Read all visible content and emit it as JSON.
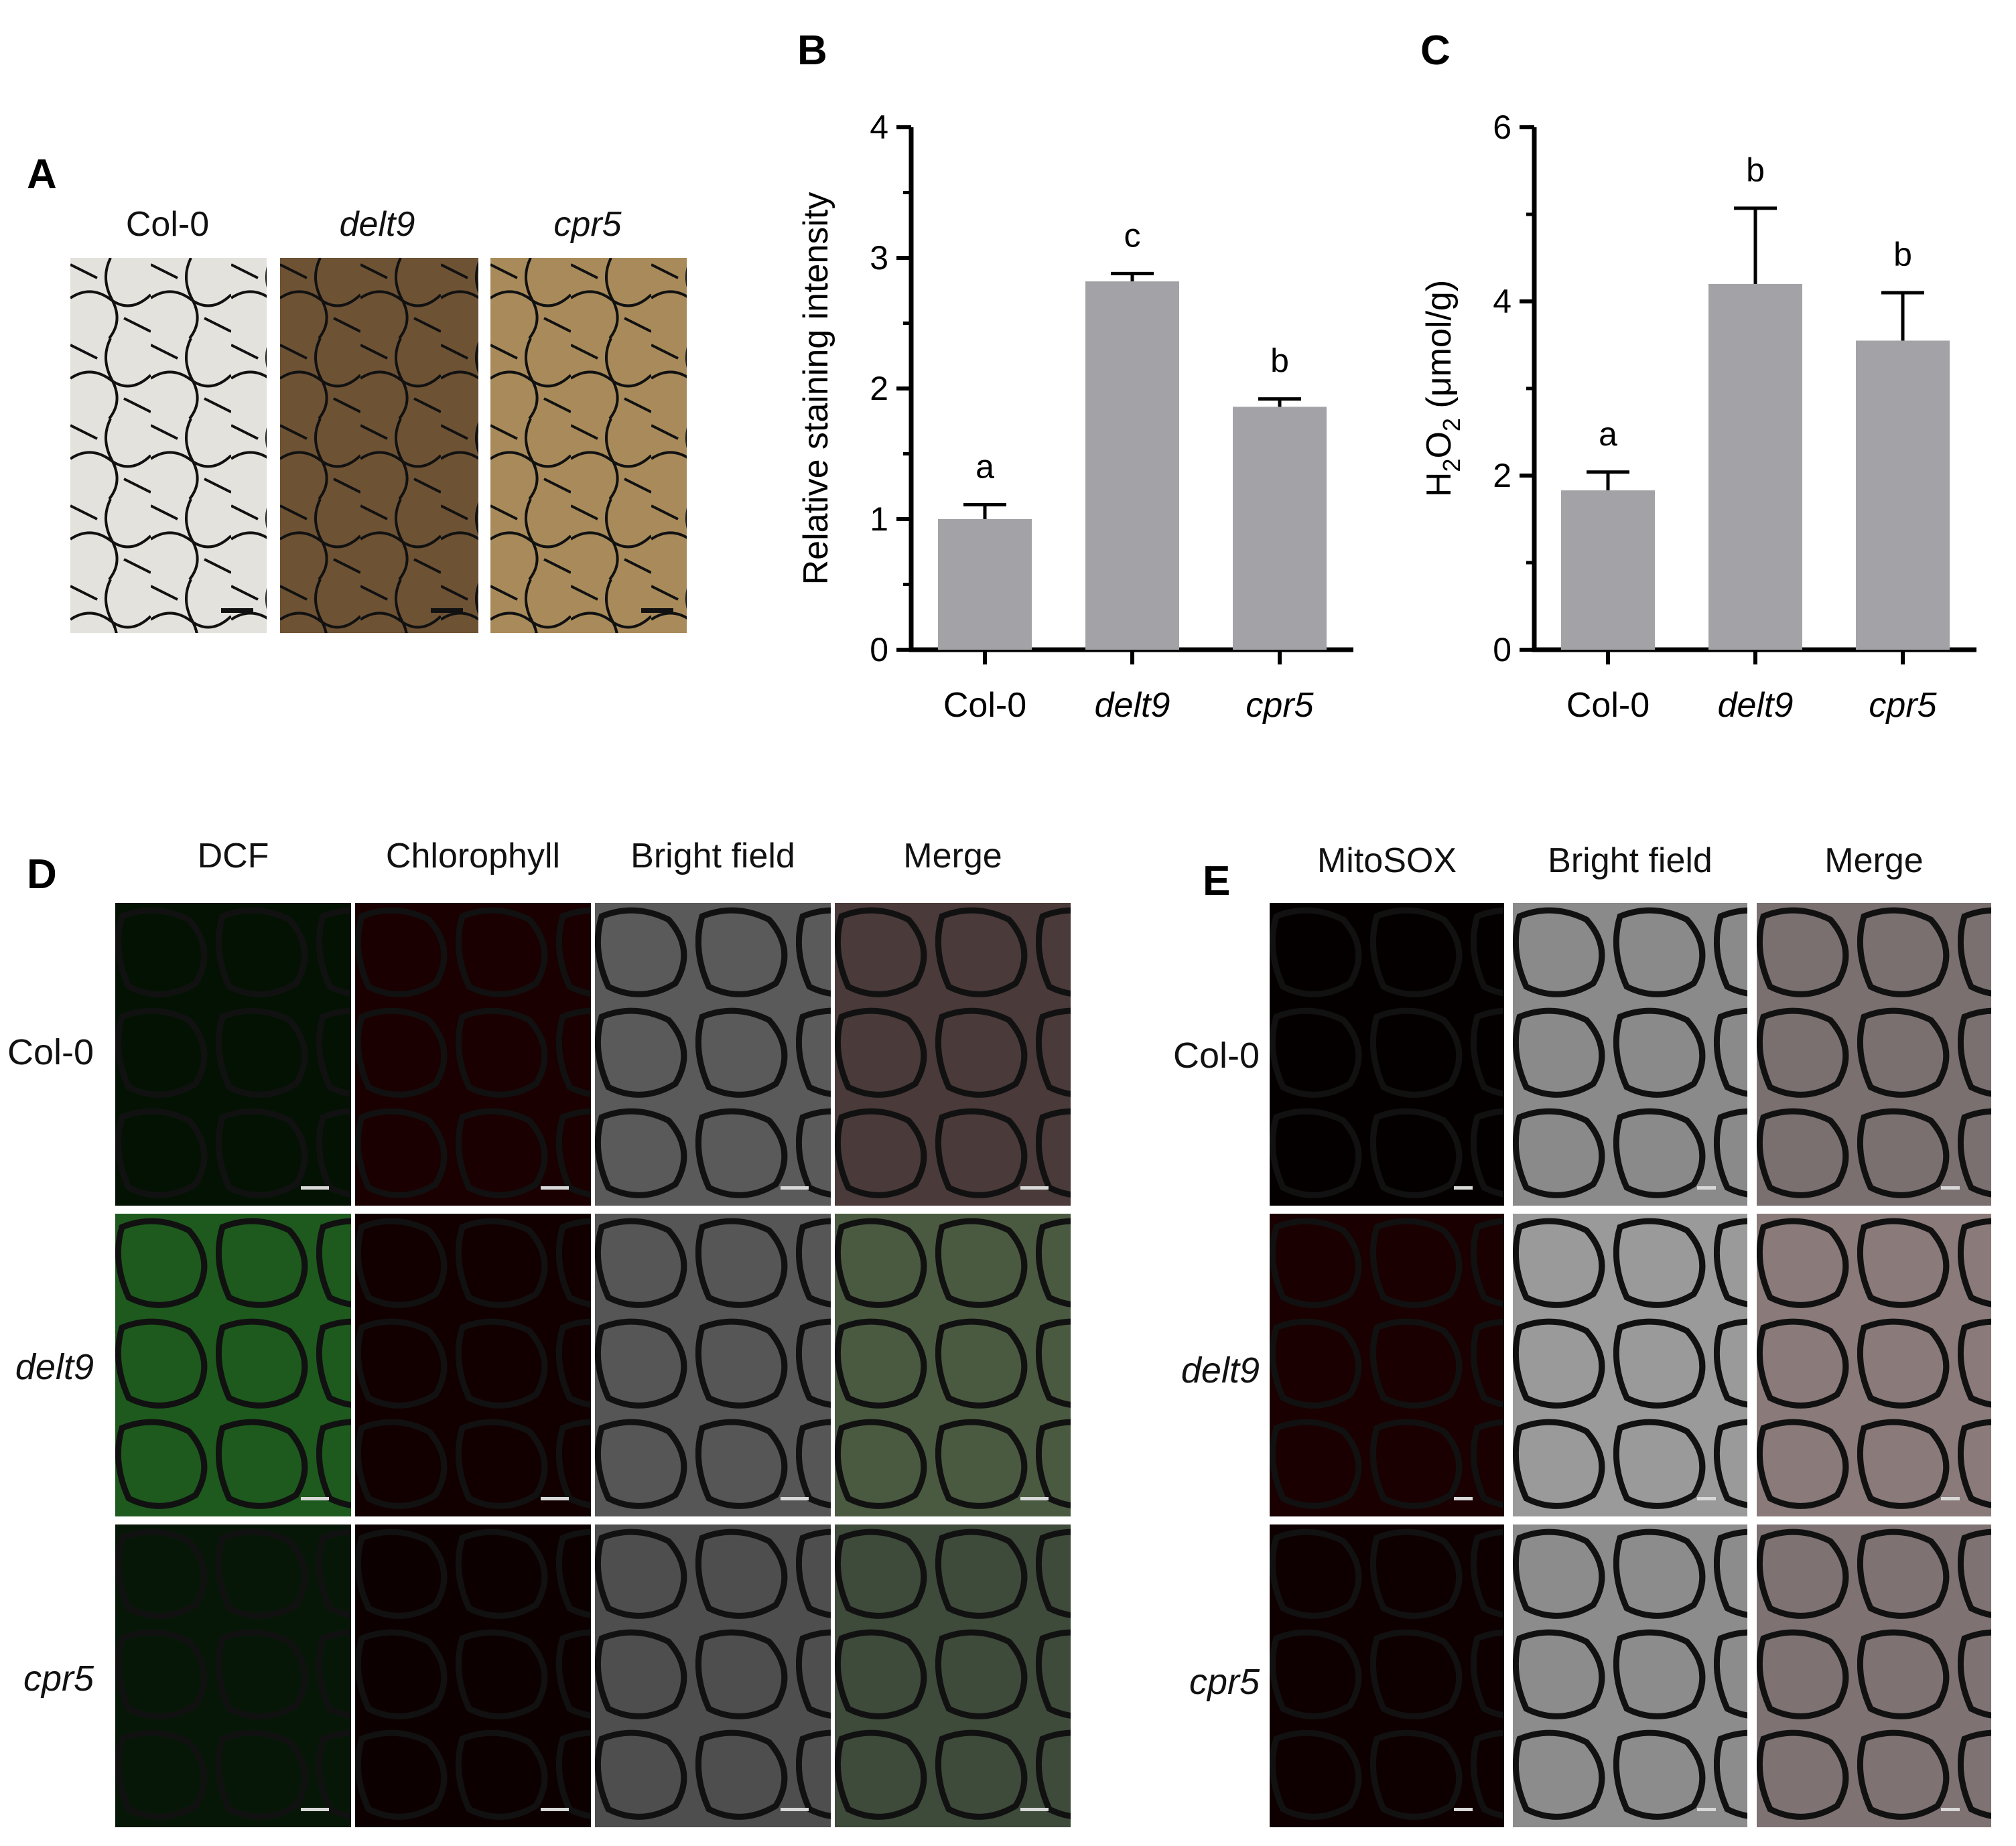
{
  "panels": {
    "A": {
      "letter": "A",
      "columns": [
        "Col-0",
        "delt9",
        "cpr5"
      ]
    },
    "D": {
      "letter": "D",
      "columns": [
        "DCF",
        "Chlorophyll",
        "Bright field",
        "Merge"
      ],
      "rows": [
        "Col-0",
        "delt9",
        "cpr5"
      ]
    },
    "E": {
      "letter": "E",
      "columns": [
        "MitoSOX",
        "Bright field",
        "Merge"
      ],
      "rows": [
        "Col-0",
        "delt9",
        "cpr5"
      ]
    }
  },
  "chart_data": [
    {
      "panel": "B",
      "type": "bar",
      "categories": [
        "Col-0",
        "delt9",
        "cpr5"
      ],
      "values": [
        1.0,
        2.82,
        1.86
      ],
      "errors": [
        0.11,
        0.06,
        0.06
      ],
      "significance": [
        "a",
        "c",
        "b"
      ],
      "ylabel": "Relative staining intensity",
      "ylim": [
        0,
        4
      ],
      "yticks": [
        "0",
        "1",
        "2",
        "3",
        "4"
      ],
      "bar_color": "#a3a3a7"
    },
    {
      "panel": "C",
      "type": "bar",
      "categories": [
        "Col-0",
        "delt9",
        "cpr5"
      ],
      "values": [
        1.83,
        4.2,
        3.55
      ],
      "errors": [
        0.21,
        0.87,
        0.55
      ],
      "significance": [
        "a",
        "b",
        "b"
      ],
      "ylabel": "H2O2 (μmol/g)",
      "ylabel_parts": [
        "H",
        "2",
        "O",
        "2",
        " (μmol/g)"
      ],
      "ylim": [
        0,
        6
      ],
      "yticks": [
        "0",
        "2",
        "4",
        "6"
      ],
      "bar_color": "#a3a3a7"
    }
  ]
}
